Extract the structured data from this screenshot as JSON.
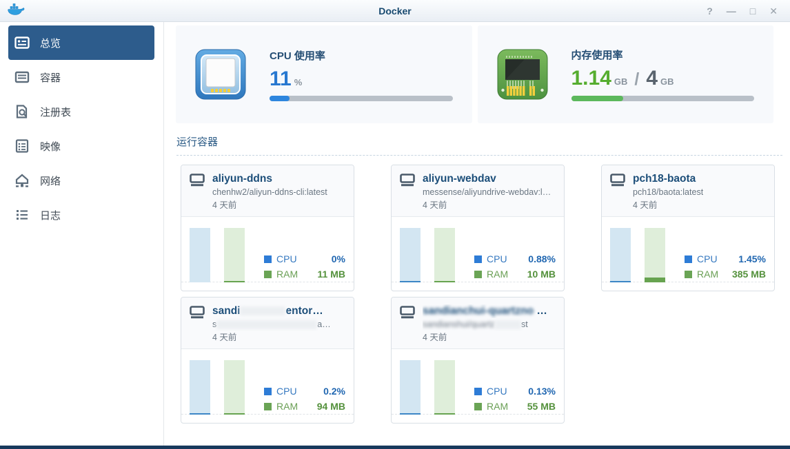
{
  "window": {
    "title": "Docker",
    "controls": {
      "help": "?",
      "minimize": "—",
      "maximize": "□",
      "close": "✕"
    }
  },
  "sidebar": {
    "items": [
      {
        "label": "总览",
        "icon": "overview-icon",
        "active": true
      },
      {
        "label": "容器",
        "icon": "containers-icon",
        "active": false
      },
      {
        "label": "注册表",
        "icon": "registry-icon",
        "active": false
      },
      {
        "label": "映像",
        "icon": "images-icon",
        "active": false
      },
      {
        "label": "网络",
        "icon": "network-icon",
        "active": false
      },
      {
        "label": "日志",
        "icon": "logs-icon",
        "active": false
      }
    ]
  },
  "stats": {
    "cpu": {
      "title": "CPU 使用率",
      "value": "11",
      "unit": "%",
      "percent": 11,
      "accent": "#2e86de"
    },
    "memory": {
      "title": "内存使用率",
      "used": "1.14",
      "used_unit": "GB",
      "separator": "/",
      "total": "4",
      "total_unit": "GB",
      "percent": 28.5,
      "accent": "#5cb85c"
    }
  },
  "running_section": {
    "title": "运行容器"
  },
  "legend": {
    "cpu_label": "CPU",
    "ram_label": "RAM"
  },
  "containers": [
    {
      "name_parts": [
        {
          "text": "aliyun-ddns"
        }
      ],
      "image_parts": [
        {
          "text": "chenhw2/aliyun-ddns-cli:latest"
        }
      ],
      "age": "4 天前",
      "cpu_value": "0%",
      "ram_value": "11 MB",
      "cpu_fill_pct": 0,
      "ram_fill_pct": 2.5
    },
    {
      "name_parts": [
        {
          "text": "aliyun-webdav"
        }
      ],
      "image_parts": [
        {
          "text": "messense/aliyundrive-webdav:l…"
        }
      ],
      "age": "4 天前",
      "cpu_value": "0.88%",
      "ram_value": "10 MB",
      "cpu_fill_pct": 2,
      "ram_fill_pct": 2.5
    },
    {
      "name_parts": [
        {
          "text": "pch18-baota"
        }
      ],
      "image_parts": [
        {
          "text": "pch18/baota:latest"
        }
      ],
      "age": "4 天前",
      "cpu_value": "1.45%",
      "ram_value": "385 MB",
      "cpu_fill_pct": 2,
      "ram_fill_pct": 9.5
    },
    {
      "name_parts": [
        {
          "text": "sandi"
        },
        {
          "redact_w": 66
        },
        {
          "text": "entor…"
        }
      ],
      "image_parts": [
        {
          "text": "s"
        },
        {
          "redact_w": 146
        },
        {
          "text": "a…"
        }
      ],
      "age": "4 天前",
      "cpu_value": "0.2%",
      "ram_value": "94 MB",
      "cpu_fill_pct": 2.5,
      "ram_fill_pct": 3
    },
    {
      "name_parts": [
        {
          "blur_text": "sandianchui-quartzno"
        },
        {
          "text": " …"
        }
      ],
      "image_parts": [
        {
          "blur_text": "sandianshui/quartz"
        },
        {
          "redact_w": 38
        },
        {
          "text": "st"
        }
      ],
      "age": "4 天前",
      "cpu_value": "0.13%",
      "ram_value": "55 MB",
      "cpu_fill_pct": 2,
      "ram_fill_pct": 2.5
    }
  ]
}
